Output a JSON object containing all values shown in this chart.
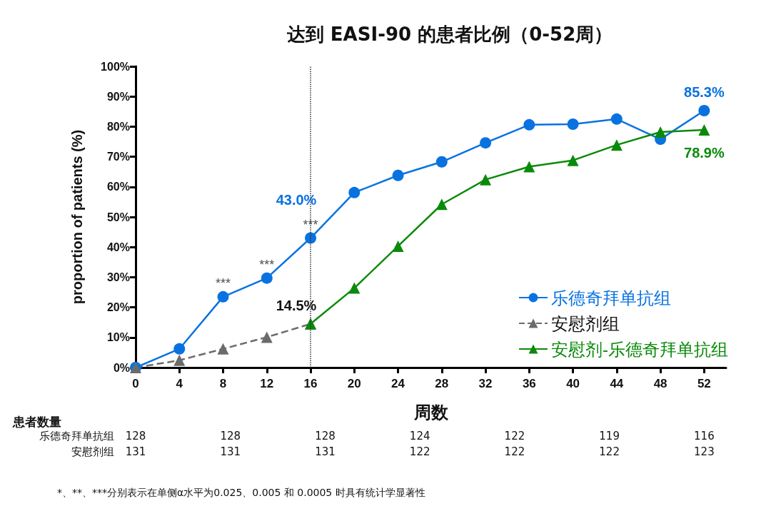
{
  "chart_data": {
    "type": "line",
    "title": "达到 EASI-90 的患者比例（0-52周）",
    "xlabel": "周数",
    "ylabel": "proportion of patients (%)",
    "xlim": [
      0,
      54
    ],
    "xticks": [
      0,
      4,
      8,
      12,
      16,
      20,
      24,
      28,
      32,
      36,
      40,
      44,
      48,
      52
    ],
    "ylim": [
      0,
      100
    ],
    "yticks": [
      {
        "value": 0,
        "label": "0%"
      },
      {
        "value": 10,
        "label": "10%"
      },
      {
        "value": 20,
        "label": "20%"
      },
      {
        "value": 30,
        "label": "30%"
      },
      {
        "value": 40,
        "label": "40%"
      },
      {
        "value": 50,
        "label": "50%"
      },
      {
        "value": 60,
        "label": "60%"
      },
      {
        "value": 70,
        "label": "70%"
      },
      {
        "value": 80,
        "label": "80%"
      },
      {
        "value": 90,
        "label": "90%"
      },
      {
        "value": 100,
        "label": "100%"
      }
    ],
    "grid": false,
    "legend": "bottom right",
    "series": [
      {
        "name": "乐德奇拜单抗组",
        "color": "#0a72e0",
        "marker": "circle",
        "line_style": "solid",
        "x": [
          0,
          4,
          8,
          12,
          16,
          20,
          24,
          28,
          32,
          36,
          40,
          44,
          48,
          52
        ],
        "values": [
          0,
          6.2,
          23.5,
          29.7,
          43.0,
          58.1,
          63.8,
          68.3,
          74.6,
          80.6,
          80.8,
          82.5,
          75.8,
          85.3
        ],
        "value_labels": [
          null,
          null,
          null,
          null,
          "43.0%",
          null,
          null,
          null,
          null,
          null,
          null,
          null,
          null,
          "85.3%"
        ]
      },
      {
        "name": "安慰剂组",
        "color": "#6b6b6b",
        "marker": "triangle",
        "line_style": "dashed",
        "x": [
          0,
          4,
          8,
          12,
          16
        ],
        "values": [
          0,
          2.4,
          6.2,
          10.1,
          14.5
        ],
        "value_labels": [
          null,
          null,
          null,
          null,
          "14.5%"
        ]
      },
      {
        "name": "安慰剂-乐德奇拜单抗组",
        "color": "#0a8a0a",
        "marker": "triangle",
        "line_style": "solid",
        "x": [
          16,
          20,
          24,
          28,
          32,
          36,
          40,
          44,
          48,
          52
        ],
        "values": [
          14.5,
          26.4,
          40.3,
          54.2,
          62.4,
          66.7,
          68.8,
          73.9,
          78.2,
          78.9
        ],
        "value_labels": [
          null,
          null,
          null,
          null,
          null,
          null,
          null,
          null,
          null,
          "78.9%"
        ]
      }
    ],
    "ref_lines": [
      {
        "axis": "x",
        "value": 16,
        "color": "#333333",
        "line_style": "dotted"
      }
    ],
    "annotations": [
      {
        "text": "***",
        "x": 8,
        "y": 23.5
      },
      {
        "text": "***",
        "x": 12,
        "y": 29.7
      },
      {
        "text": "***",
        "x": 16,
        "y": 43.0
      },
      "患者数量",
      "乐德奇拜单抗组",
      "安慰剂组",
      "128",
      "128",
      "128",
      "124",
      "122",
      "119",
      "116",
      "131",
      "131",
      "131",
      "122",
      "122",
      "122",
      "123",
      "*、**、***分别表示在单侧α水平为0.025、0.005 和 0.0005 时具有统计学显著性"
    ]
  }
}
